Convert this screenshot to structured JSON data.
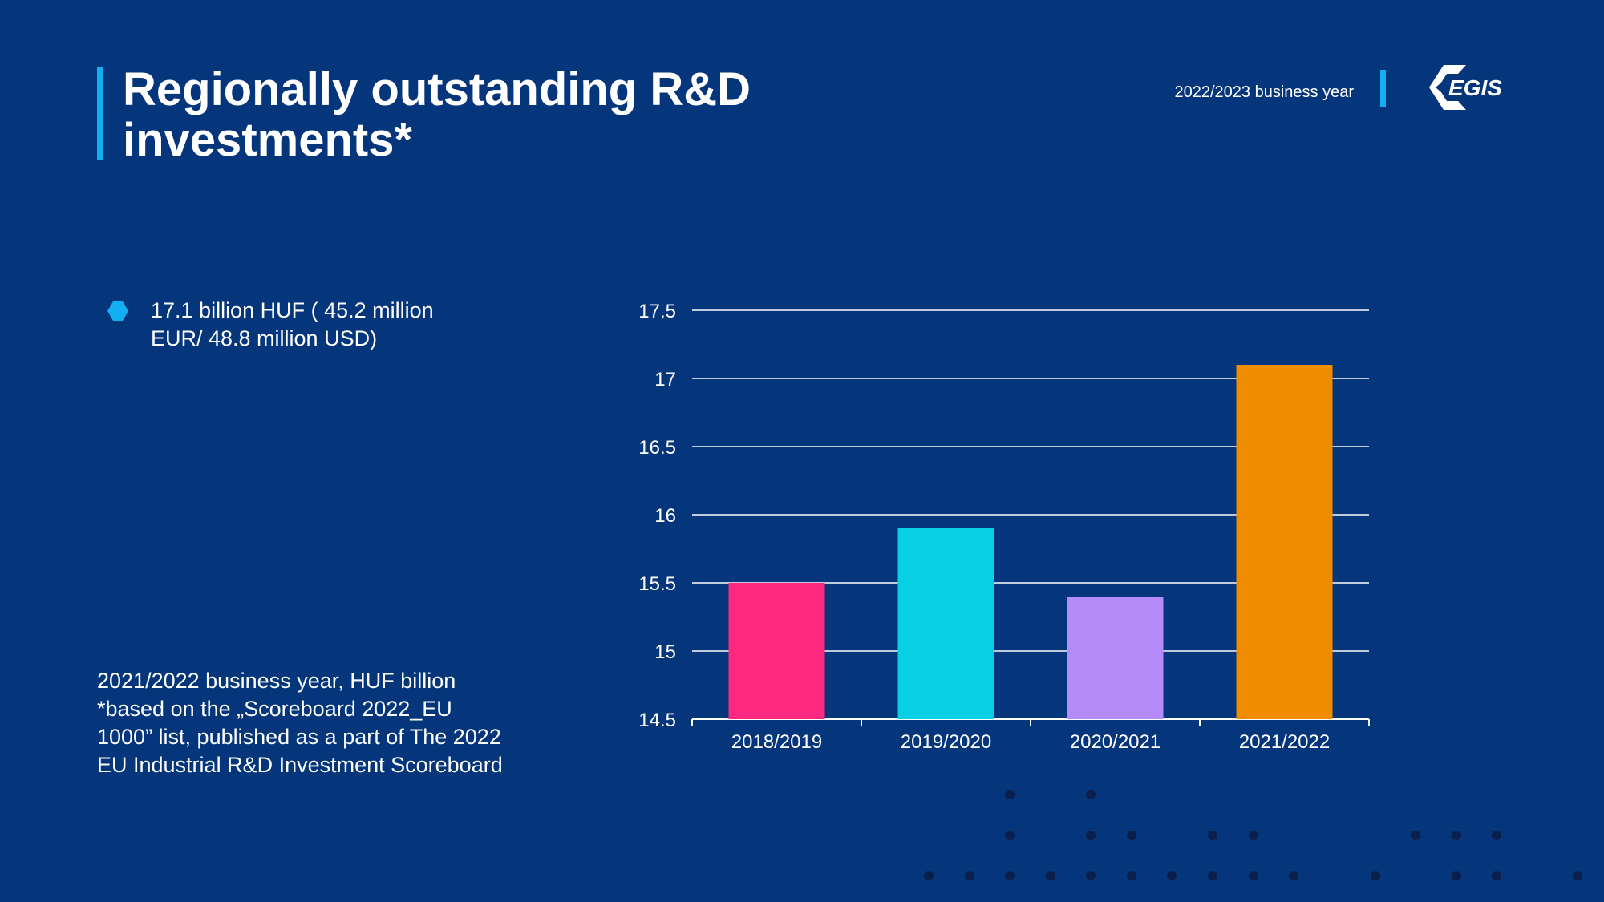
{
  "header": {
    "title_line1": "Regionally outstanding R&D",
    "title_line2": "investments*",
    "business_year": "2022/2023 business year",
    "logo_text": "EGIS"
  },
  "bullet": {
    "line1": "17.1 billion HUF ( 45.2 million",
    "line2": "EUR/ 48.8 million USD)"
  },
  "footnote": {
    "line1": "2021/2022 business year, HUF billion",
    "line2": "*based on the „Scoreboard 2022_EU",
    "line3": "1000” list, published as a part of The 2022",
    "line4": "EU Industrial R&D Investment Scoreboard"
  },
  "colors": {
    "background": "#05357a",
    "accent": "#14aff0",
    "bar_colors": [
      "#ff2a7f",
      "#07d0e3",
      "#b48bf9",
      "#ef8c00"
    ]
  },
  "chart_data": {
    "type": "bar",
    "categories": [
      "2018/2019",
      "2019/2020",
      "2020/2021",
      "2021/2022"
    ],
    "values": [
      15.5,
      15.9,
      15.4,
      17.1
    ],
    "ylim": [
      14.5,
      17.5
    ],
    "yticks": [
      "14.5",
      "15",
      "15.5",
      "16",
      "16.5",
      "17",
      "17.5"
    ],
    "grid": true,
    "title": "",
    "xlabel": "",
    "ylabel": ""
  }
}
